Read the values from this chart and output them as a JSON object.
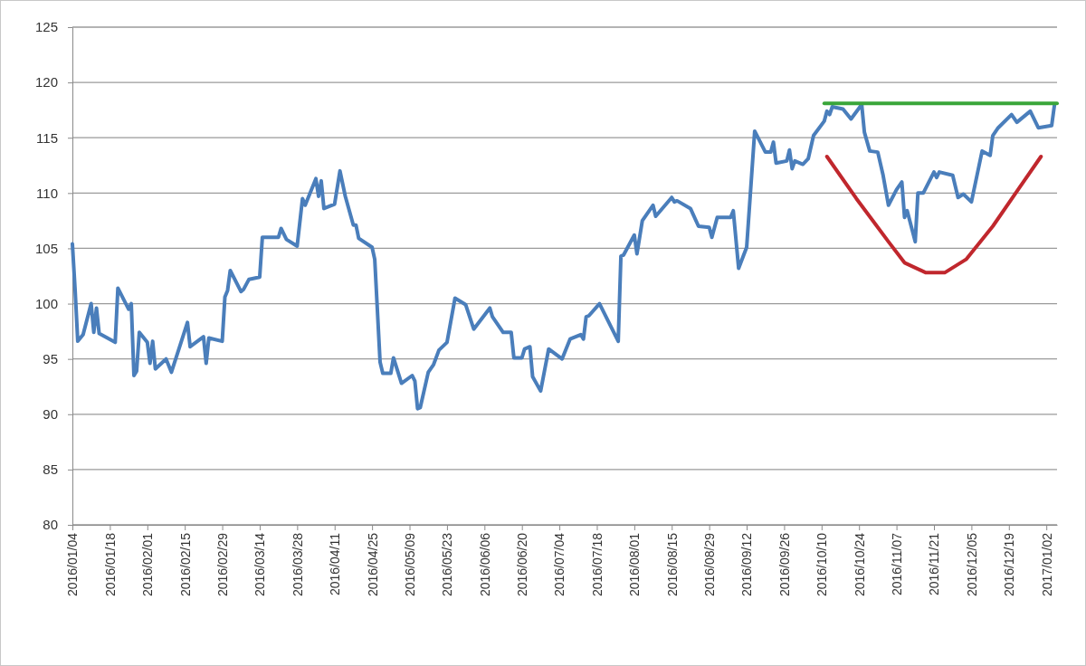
{
  "chart_data": {
    "type": "line",
    "xlim": [
      "2016-01-04",
      "2017-01-06"
    ],
    "xticks": [
      {
        "value": "2016-01-04",
        "label": "2016/01/04"
      },
      {
        "value": "2016-01-18",
        "label": "2016/01/18"
      },
      {
        "value": "2016-02-01",
        "label": "2016/02/01"
      },
      {
        "value": "2016-02-15",
        "label": "2016/02/15"
      },
      {
        "value": "2016-02-29",
        "label": "2016/02/29"
      },
      {
        "value": "2016-03-14",
        "label": "2016/03/14"
      },
      {
        "value": "2016-03-28",
        "label": "2016/03/28"
      },
      {
        "value": "2016-04-11",
        "label": "2016/04/11"
      },
      {
        "value": "2016-04-25",
        "label": "2016/04/25"
      },
      {
        "value": "2016-05-09",
        "label": "2016/05/09"
      },
      {
        "value": "2016-05-23",
        "label": "2016/05/23"
      },
      {
        "value": "2016-06-06",
        "label": "2016/06/06"
      },
      {
        "value": "2016-06-20",
        "label": "2016/06/20"
      },
      {
        "value": "2016-07-04",
        "label": "2016/07/04"
      },
      {
        "value": "2016-07-18",
        "label": "2016/07/18"
      },
      {
        "value": "2016-08-01",
        "label": "2016/08/01"
      },
      {
        "value": "2016-08-15",
        "label": "2016/08/15"
      },
      {
        "value": "2016-08-29",
        "label": "2016/08/29"
      },
      {
        "value": "2016-09-12",
        "label": "2016/09/12"
      },
      {
        "value": "2016-09-26",
        "label": "2016/09/26"
      },
      {
        "value": "2016-10-10",
        "label": "2016/10/10"
      },
      {
        "value": "2016-10-24",
        "label": "2016/10/24"
      },
      {
        "value": "2016-11-07",
        "label": "2016/11/07"
      },
      {
        "value": "2016-11-21",
        "label": "2016/11/21"
      },
      {
        "value": "2016-12-05",
        "label": "2016/12/05"
      },
      {
        "value": "2016-12-19",
        "label": "2016/12/19"
      },
      {
        "value": "2017-01-02",
        "label": "2017/01/02"
      }
    ],
    "ylim": [
      80,
      125
    ],
    "yticks": [
      80,
      85,
      90,
      95,
      100,
      105,
      110,
      115,
      120,
      125
    ],
    "grid": "y",
    "series": [
      {
        "color": "#4a7ebb",
        "x": [
          "2016-01-04",
          "2016-01-05",
          "2016-01-06",
          "2016-01-08",
          "2016-01-11",
          "2016-01-12",
          "2016-01-13",
          "2016-01-14",
          "2016-01-20",
          "2016-01-21",
          "2016-01-25",
          "2016-01-26",
          "2016-01-27",
          "2016-01-28",
          "2016-01-29",
          "2016-02-01",
          "2016-02-02",
          "2016-02-03",
          "2016-02-04",
          "2016-02-08",
          "2016-02-10",
          "2016-02-16",
          "2016-02-17",
          "2016-02-22",
          "2016-02-23",
          "2016-02-24",
          "2016-02-29",
          "2016-03-01",
          "2016-03-02",
          "2016-03-03",
          "2016-03-07",
          "2016-03-08",
          "2016-03-10",
          "2016-03-14",
          "2016-03-15",
          "2016-03-21",
          "2016-03-22",
          "2016-03-24",
          "2016-03-28",
          "2016-03-30",
          "2016-03-31",
          "2016-04-04",
          "2016-04-05",
          "2016-04-06",
          "2016-04-07",
          "2016-04-11",
          "2016-04-13",
          "2016-04-15",
          "2016-04-18",
          "2016-04-19",
          "2016-04-20",
          "2016-04-25",
          "2016-04-26",
          "2016-04-28",
          "2016-04-29",
          "2016-05-02",
          "2016-05-03",
          "2016-05-06",
          "2016-05-10",
          "2016-05-11",
          "2016-05-12",
          "2016-05-13",
          "2016-05-16",
          "2016-05-18",
          "2016-05-20",
          "2016-05-23",
          "2016-05-26",
          "2016-05-30",
          "2016-06-02",
          "2016-06-08",
          "2016-06-09",
          "2016-06-13",
          "2016-06-16",
          "2016-06-17",
          "2016-06-20",
          "2016-06-21",
          "2016-06-23",
          "2016-06-24",
          "2016-06-27",
          "2016-06-30",
          "2016-07-05",
          "2016-07-08",
          "2016-07-12",
          "2016-07-13",
          "2016-07-14",
          "2016-07-15",
          "2016-07-19",
          "2016-07-26",
          "2016-07-27",
          "2016-07-28",
          "2016-08-01",
          "2016-08-02",
          "2016-08-04",
          "2016-08-08",
          "2016-08-09",
          "2016-08-15",
          "2016-08-16",
          "2016-08-17",
          "2016-08-22",
          "2016-08-25",
          "2016-08-29",
          "2016-08-30",
          "2016-09-01",
          "2016-09-06",
          "2016-09-07",
          "2016-09-09",
          "2016-09-12",
          "2016-09-15",
          "2016-09-19",
          "2016-09-21",
          "2016-09-22",
          "2016-09-23",
          "2016-09-27",
          "2016-09-28",
          "2016-09-29",
          "2016-09-30",
          "2016-10-03",
          "2016-10-05",
          "2016-10-07",
          "2016-10-11",
          "2016-10-12",
          "2016-10-13",
          "2016-10-14",
          "2016-10-18",
          "2016-10-21",
          "2016-10-25",
          "2016-10-26",
          "2016-10-28",
          "2016-10-31",
          "2016-11-02",
          "2016-11-04",
          "2016-11-07",
          "2016-11-09",
          "2016-11-10",
          "2016-11-11",
          "2016-11-14",
          "2016-11-15",
          "2016-11-17",
          "2016-11-21",
          "2016-11-22",
          "2016-11-23",
          "2016-11-28",
          "2016-11-30",
          "2016-12-02",
          "2016-12-05",
          "2016-12-09",
          "2016-12-12",
          "2016-12-13",
          "2016-12-15",
          "2016-12-20",
          "2016-12-22",
          "2016-12-27",
          "2016-12-30",
          "2017-01-04",
          "2017-01-05"
        ],
        "values": [
          105.4,
          101.3,
          96.6,
          97.2,
          100.0,
          97.4,
          99.6,
          97.3,
          96.5,
          101.4,
          99.5,
          100.0,
          93.5,
          93.9,
          97.4,
          96.5,
          94.6,
          96.6,
          94.1,
          95.0,
          93.8,
          98.3,
          96.1,
          97.0,
          94.6,
          96.9,
          96.6,
          100.6,
          101.2,
          103.0,
          101.1,
          101.3,
          102.2,
          102.4,
          106.0,
          106.0,
          106.8,
          105.8,
          105.2,
          109.5,
          108.9,
          111.3,
          109.7,
          111.1,
          108.6,
          109.0,
          112.0,
          109.7,
          107.1,
          107.1,
          105.9,
          105.1,
          104.0,
          94.7,
          93.7,
          93.7,
          95.1,
          92.8,
          93.5,
          93.0,
          90.5,
          90.6,
          93.8,
          94.5,
          95.8,
          96.5,
          100.5,
          99.9,
          97.7,
          99.6,
          98.8,
          97.4,
          97.4,
          95.1,
          95.1,
          95.9,
          96.1,
          93.4,
          92.1,
          95.9,
          95.0,
          96.8,
          97.2,
          96.8,
          98.8,
          98.9,
          100.0,
          96.6,
          104.3,
          104.4,
          106.2,
          104.5,
          107.5,
          108.9,
          107.9,
          109.6,
          109.2,
          109.3,
          108.6,
          107.0,
          106.9,
          106.0,
          107.8,
          107.8,
          108.4,
          103.2,
          105.1,
          115.6,
          113.7,
          113.7,
          114.6,
          112.7,
          112.9,
          113.9,
          112.2,
          112.9,
          112.6,
          113.1,
          115.2,
          116.5,
          117.4,
          117.1,
          117.8,
          117.6,
          116.7,
          118.0,
          115.5,
          113.8,
          113.7,
          111.6,
          108.9,
          110.3,
          111.0,
          107.8,
          108.4,
          105.6,
          110.0,
          110.0,
          111.9,
          111.4,
          111.9,
          111.6,
          109.6,
          109.9,
          109.2,
          113.8,
          113.4,
          115.2,
          115.9,
          117.1,
          116.4,
          117.4,
          115.9,
          116.1,
          117.9
        ]
      },
      {
        "color": "#c0272d",
        "x": [
          "2016-10-12",
          "2016-10-23",
          "2016-11-04",
          "2016-11-10",
          "2016-11-18",
          "2016-11-25",
          "2016-12-03",
          "2016-12-13",
          "2016-12-23",
          "2016-12-31"
        ],
        "values": [
          113.3,
          109.5,
          105.6,
          103.7,
          102.8,
          102.8,
          104.0,
          107.0,
          110.5,
          113.3
        ]
      },
      {
        "color": "#3aa63a",
        "x": [
          "2016-10-11",
          "2017-01-06"
        ],
        "values": [
          118.1,
          118.1
        ]
      }
    ]
  }
}
